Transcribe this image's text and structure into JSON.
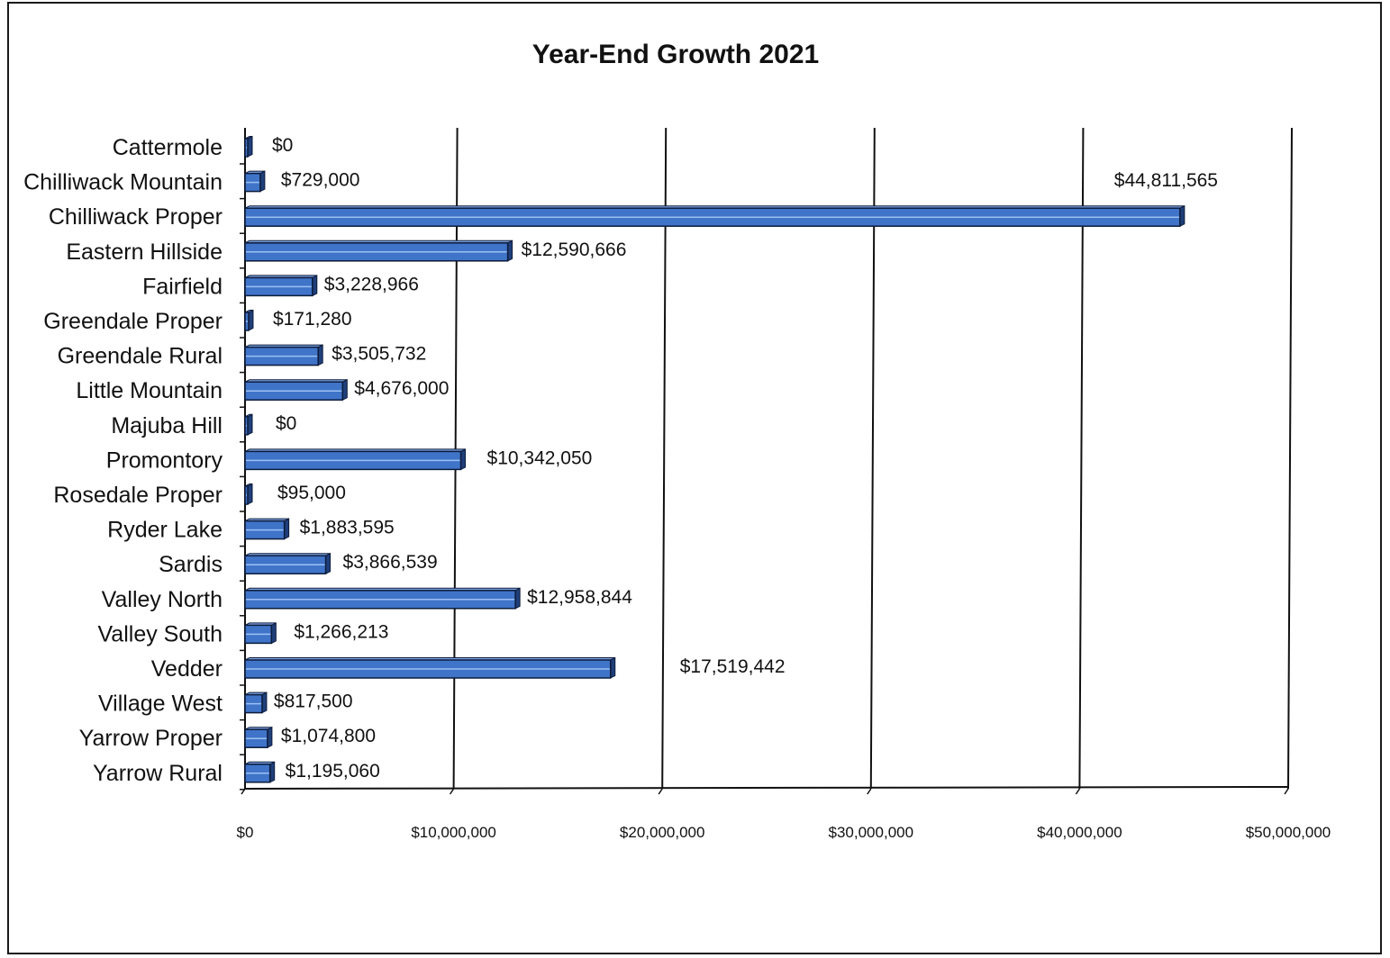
{
  "chart_data": {
    "type": "bar",
    "orientation": "horizontal",
    "title": "Year-End Growth 2021",
    "xlabel": "",
    "ylabel": "",
    "xlim": [
      0,
      50000000
    ],
    "grid": "vertical major gridlines",
    "categories": [
      "Cattermole",
      "Chilliwack Mountain",
      "Chilliwack Proper",
      "Eastern Hillside",
      "Fairfield",
      "Greendale Proper",
      "Greendale Rural",
      "Little Mountain",
      "Majuba Hill",
      "Promontory",
      "Rosedale Proper",
      "Ryder Lake",
      "Sardis",
      "Valley North",
      "Valley South",
      "Vedder",
      "Village West",
      "Yarrow Proper",
      "Yarrow Rural"
    ],
    "values": [
      0,
      729000,
      44811565,
      12590666,
      3228966,
      171280,
      3505732,
      4676000,
      0,
      10342050,
      95000,
      1883595,
      3866539,
      12958844,
      1266213,
      17519442,
      817500,
      1074800,
      1195060
    ],
    "data_labels": [
      "$0",
      "$729,000",
      "$44,811,565",
      "$12,590,666",
      "$3,228,966",
      "$171,280",
      "$3,505,732",
      "$4,676,000",
      "$0",
      "$10,342,050",
      "$95,000",
      "$1,883,595",
      "$3,866,539",
      "$12,958,844",
      "$1,266,213",
      "$17,519,442",
      "$817,500",
      "$1,074,800",
      "$1,195,060"
    ],
    "x_ticks": [
      "$0",
      "$10,000,000",
      "$20,000,000",
      "$30,000,000",
      "$40,000,000",
      "$50,000,000"
    ],
    "colors": {
      "bar": "#3f74c8",
      "bar_top": "#7ea6e6",
      "bar_side": "#1f3f7a",
      "outline": "#0d1b3a",
      "grid": "#111111"
    }
  }
}
